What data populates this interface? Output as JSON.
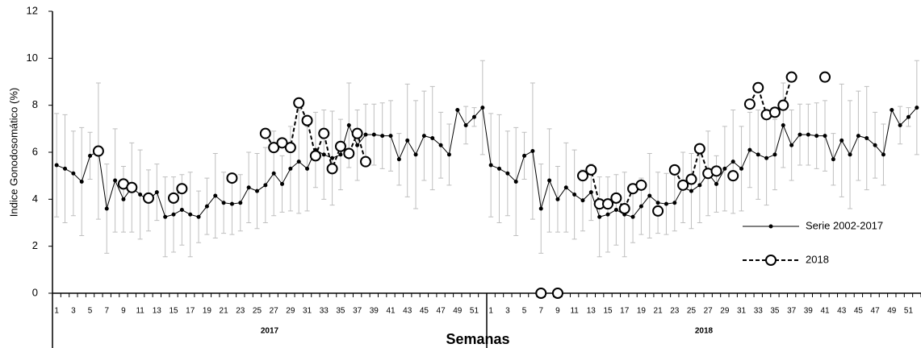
{
  "chart_data": {
    "type": "line",
    "y_label": "Indice Gonodosomático (%)",
    "x_label": "Semanas",
    "groups": [
      "2017",
      "2018"
    ],
    "categories": [
      "1",
      null,
      "3",
      null,
      "5",
      null,
      "7",
      null,
      "9",
      null,
      "11",
      null,
      "13",
      null,
      "15",
      null,
      "17",
      null,
      "19",
      null,
      "21",
      null,
      "23",
      null,
      "25",
      null,
      "27",
      null,
      "29",
      null,
      "31",
      null,
      "33",
      null,
      "35",
      null,
      "37",
      null,
      "39",
      null,
      "41",
      null,
      "43",
      null,
      "45",
      null,
      "47",
      null,
      "49",
      null,
      "51",
      null,
      "1",
      null,
      "3",
      null,
      "5",
      null,
      "7",
      null,
      "9",
      null,
      "11",
      null,
      "13",
      null,
      "15",
      null,
      "17",
      null,
      "19",
      null,
      "21",
      null,
      "23",
      null,
      "25",
      null,
      "27",
      null,
      "29",
      null,
      "31",
      null,
      "33",
      null,
      "35",
      null,
      "37",
      null,
      "39",
      null,
      "41",
      null,
      "43",
      null,
      "45",
      null,
      "47",
      null,
      "49",
      null,
      "51",
      null
    ],
    "ylim": [
      0,
      12
    ],
    "yticks": [
      0,
      2,
      4,
      6,
      8,
      10,
      12
    ],
    "series": [
      {
        "name": "Serie 2002-2017",
        "color": "#000000",
        "error_color": "#bfbfbf",
        "values": [
          5.45,
          5.3,
          5.1,
          4.75,
          5.85,
          6.05,
          3.6,
          4.8,
          4.0,
          4.5,
          4.2,
          3.95,
          4.3,
          3.25,
          3.35,
          3.55,
          3.35,
          3.25,
          3.7,
          4.15,
          3.85,
          3.8,
          3.85,
          4.5,
          4.35,
          4.6,
          5.1,
          4.65,
          5.3,
          5.6,
          5.3,
          6.1,
          5.9,
          5.75,
          5.9,
          7.15,
          6.3,
          6.75,
          6.75,
          6.7,
          6.7,
          5.7,
          6.5,
          5.9,
          6.7,
          6.6,
          6.3,
          5.9,
          7.8,
          7.15,
          7.5,
          7.9,
          5.45,
          5.3,
          5.1,
          4.75,
          5.85,
          6.05,
          3.6,
          4.8,
          4.0,
          4.5,
          4.2,
          3.95,
          4.3,
          3.25,
          3.35,
          3.55,
          3.35,
          3.25,
          3.7,
          4.15,
          3.85,
          3.8,
          3.85,
          4.5,
          4.35,
          4.6,
          5.1,
          4.65,
          5.3,
          5.6,
          5.3,
          6.1,
          5.9,
          5.75,
          5.9,
          7.15,
          6.3,
          6.75,
          6.75,
          6.7,
          6.7,
          5.7,
          6.5,
          5.9,
          6.7,
          6.6,
          6.3,
          5.9,
          7.8,
          7.15,
          7.5,
          7.9
        ],
        "errors": [
          2.2,
          2.3,
          1.8,
          2.3,
          1.0,
          2.9,
          1.9,
          2.2,
          1.4,
          1.9,
          1.9,
          1.3,
          1.2,
          1.7,
          1.6,
          1.5,
          1.8,
          1.1,
          1.2,
          1.8,
          1.3,
          1.3,
          1.2,
          1.5,
          1.6,
          1.6,
          1.8,
          1.2,
          1.8,
          2.2,
          1.8,
          1.6,
          1.9,
          2.0,
          1.5,
          1.8,
          1.5,
          1.3,
          1.3,
          1.4,
          1.5,
          1.1,
          2.4,
          2.3,
          1.9,
          2.2,
          1.4,
          1.3,
          0,
          0.8,
          0.4,
          2.0,
          2.2,
          2.3,
          1.8,
          2.3,
          1.0,
          2.9,
          1.9,
          2.2,
          1.4,
          1.9,
          1.9,
          1.3,
          1.2,
          1.7,
          1.6,
          1.5,
          1.8,
          1.1,
          1.2,
          1.8,
          1.3,
          1.3,
          1.2,
          1.5,
          1.6,
          1.6,
          1.8,
          1.2,
          1.8,
          2.2,
          1.8,
          1.6,
          1.9,
          2.0,
          1.5,
          1.8,
          1.5,
          1.3,
          1.3,
          1.4,
          1.5,
          1.1,
          2.4,
          2.3,
          1.9,
          2.2,
          1.4,
          1.3,
          0,
          0.8,
          0.4,
          2.0
        ]
      },
      {
        "name": "2018",
        "color": "#000000",
        "dashed": true,
        "values": [
          null,
          null,
          null,
          null,
          null,
          6.05,
          null,
          null,
          4.65,
          4.5,
          null,
          4.05,
          null,
          null,
          4.05,
          4.45,
          null,
          null,
          null,
          null,
          null,
          4.9,
          null,
          null,
          null,
          6.8,
          6.2,
          6.4,
          6.2,
          8.1,
          7.35,
          5.85,
          6.8,
          5.3,
          6.25,
          5.95,
          6.8,
          5.6,
          null,
          null,
          null,
          null,
          null,
          null,
          null,
          null,
          null,
          null,
          null,
          null,
          null,
          null,
          null,
          null,
          null,
          null,
          null,
          null,
          0,
          null,
          0,
          null,
          null,
          5.0,
          5.25,
          3.8,
          3.8,
          4.05,
          3.6,
          4.45,
          4.6,
          null,
          3.5,
          null,
          5.25,
          4.6,
          4.85,
          6.15,
          5.1,
          5.2,
          null,
          5.0,
          null,
          8.05,
          8.75,
          7.6,
          7.7,
          8.0,
          9.2,
          null,
          null,
          null,
          9.2,
          null,
          null,
          null,
          null,
          null,
          null,
          null,
          null,
          null,
          null,
          null
        ]
      }
    ]
  }
}
